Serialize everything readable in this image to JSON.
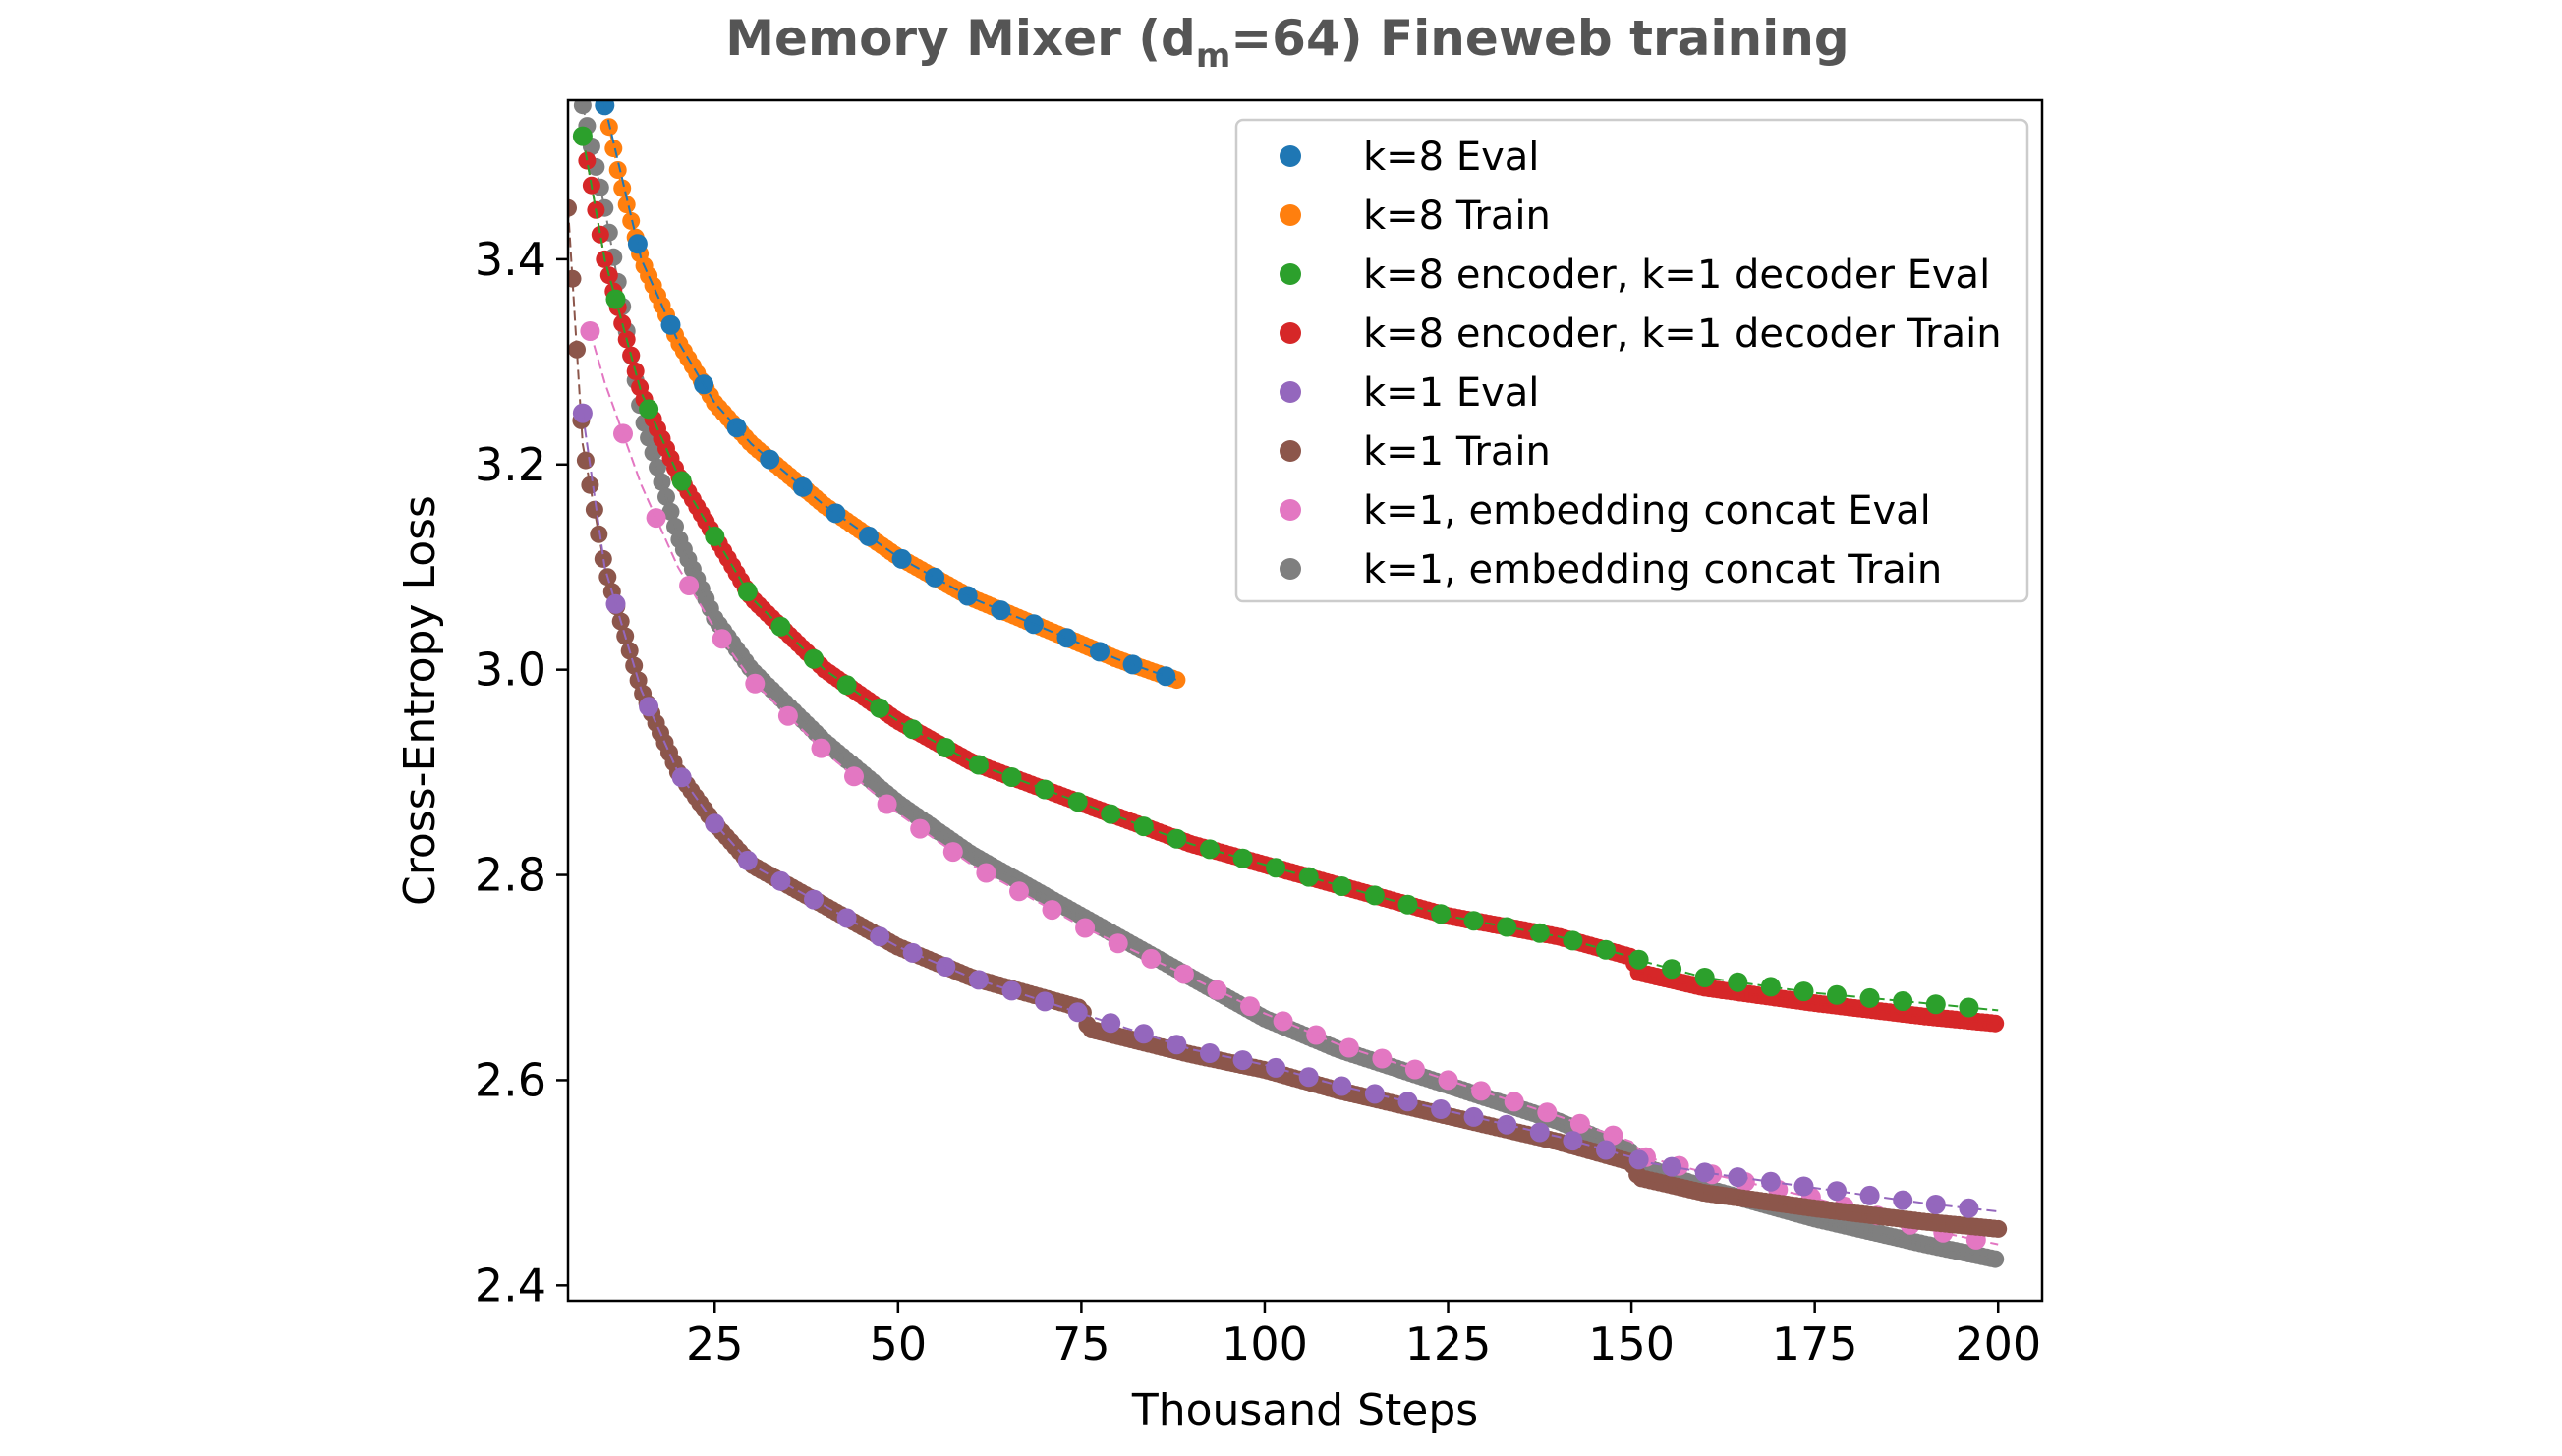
{
  "chart_data": {
    "type": "scatter",
    "title": {
      "prefix": "Memory Mixer (d",
      "subscript": "m",
      "suffix": "=64)  Fineweb training"
    },
    "xlabel": "Thousand Steps",
    "ylabel": "Cross-Entropy Loss",
    "xlim": [
      5,
      206
    ],
    "ylim": [
      2.385,
      3.555
    ],
    "xticks": [
      25,
      50,
      75,
      100,
      125,
      150,
      175,
      200
    ],
    "yticks": [
      2.4,
      2.6,
      2.8,
      3.0,
      3.2,
      3.4
    ],
    "ytick_labels": [
      "2.4",
      "2.6",
      "2.8",
      "3.0",
      "3.2",
      "3.4"
    ],
    "grid": false,
    "legend_position": "top-right",
    "series": [
      {
        "name": "k=8 Eval",
        "color": "#1f77b4",
        "kind": "eval",
        "x": [
          10,
          15,
          20,
          25,
          30,
          40,
          50,
          60,
          70,
          80,
          88
        ],
        "y": [
          3.55,
          3.4,
          3.32,
          3.26,
          3.22,
          3.16,
          3.11,
          3.07,
          3.04,
          3.01,
          2.99
        ]
      },
      {
        "name": "k=8 Train",
        "color": "#ff7f0e",
        "kind": "train",
        "x": [
          10,
          12,
          15,
          20,
          25,
          30,
          35,
          40,
          50,
          60,
          70,
          80,
          88
        ],
        "y": [
          3.55,
          3.48,
          3.4,
          3.32,
          3.26,
          3.22,
          3.19,
          3.16,
          3.11,
          3.07,
          3.04,
          3.01,
          2.99
        ]
      },
      {
        "name": "k=8 encoder, k=1 decoder Eval",
        "color": "#2ca02c",
        "kind": "eval",
        "x": [
          7,
          10,
          15,
          20,
          25,
          30,
          40,
          50,
          60,
          75,
          90,
          100,
          110,
          125,
          140,
          150,
          152,
          160,
          175,
          190,
          200
        ],
        "y": [
          3.52,
          3.4,
          3.27,
          3.19,
          3.13,
          3.07,
          3.0,
          2.95,
          2.91,
          2.87,
          2.83,
          2.81,
          2.79,
          2.76,
          2.74,
          2.72,
          2.715,
          2.7,
          2.685,
          2.675,
          2.668
        ]
      },
      {
        "name": "k=8 encoder, k=1 decoder Train",
        "color": "#d62728",
        "kind": "train",
        "x": [
          7,
          10,
          15,
          20,
          25,
          30,
          40,
          50,
          60,
          75,
          90,
          100,
          110,
          125,
          140,
          150,
          151,
          160,
          175,
          190,
          200
        ],
        "y": [
          3.52,
          3.4,
          3.27,
          3.19,
          3.13,
          3.07,
          3.0,
          2.95,
          2.91,
          2.87,
          2.83,
          2.81,
          2.79,
          2.76,
          2.74,
          2.72,
          2.705,
          2.69,
          2.675,
          2.662,
          2.655
        ]
      },
      {
        "name": "k=1 Eval",
        "color": "#9467bd",
        "kind": "eval",
        "x": [
          7,
          10,
          15,
          20,
          25,
          30,
          40,
          50,
          60,
          75,
          90,
          100,
          110,
          125,
          140,
          150,
          152,
          160,
          175,
          190,
          200
        ],
        "y": [
          3.25,
          3.1,
          2.98,
          2.9,
          2.85,
          2.81,
          2.77,
          2.73,
          2.7,
          2.665,
          2.63,
          2.615,
          2.595,
          2.57,
          2.545,
          2.525,
          2.52,
          2.51,
          2.495,
          2.48,
          2.472
        ]
      },
      {
        "name": "k=1 Train",
        "color": "#8c564b",
        "kind": "train",
        "x": [
          5,
          7,
          10,
          15,
          20,
          25,
          30,
          40,
          50,
          60,
          75,
          76,
          90,
          100,
          110,
          125,
          140,
          150,
          151,
          160,
          175,
          190,
          200
        ],
        "y": [
          3.45,
          3.22,
          3.1,
          2.98,
          2.9,
          2.85,
          2.81,
          2.77,
          2.73,
          2.7,
          2.67,
          2.65,
          2.625,
          2.61,
          2.59,
          2.565,
          2.54,
          2.52,
          2.505,
          2.49,
          2.475,
          2.462,
          2.455
        ]
      },
      {
        "name": "k=1, embedding concat Eval",
        "color": "#e377c2",
        "kind": "eval",
        "x": [
          8,
          10,
          15,
          20,
          25,
          30,
          40,
          50,
          60,
          75,
          90,
          100,
          110,
          125,
          140,
          150,
          152,
          160,
          175,
          190,
          200
        ],
        "y": [
          3.33,
          3.28,
          3.18,
          3.1,
          3.04,
          2.99,
          2.92,
          2.86,
          2.81,
          2.75,
          2.7,
          2.665,
          2.635,
          2.6,
          2.565,
          2.54,
          2.525,
          2.51,
          2.485,
          2.455,
          2.44
        ]
      },
      {
        "name": "k=1, embedding concat Train",
        "color": "#7f7f7f",
        "kind": "train",
        "x": [
          7,
          10,
          15,
          20,
          25,
          30,
          40,
          50,
          60,
          75,
          90,
          100,
          110,
          125,
          140,
          150,
          152,
          160,
          175,
          190,
          200
        ],
        "y": [
          3.55,
          3.45,
          3.25,
          3.13,
          3.05,
          3.0,
          2.93,
          2.87,
          2.82,
          2.76,
          2.7,
          2.66,
          2.63,
          2.595,
          2.56,
          2.53,
          2.515,
          2.495,
          2.465,
          2.44,
          2.425
        ]
      }
    ]
  }
}
